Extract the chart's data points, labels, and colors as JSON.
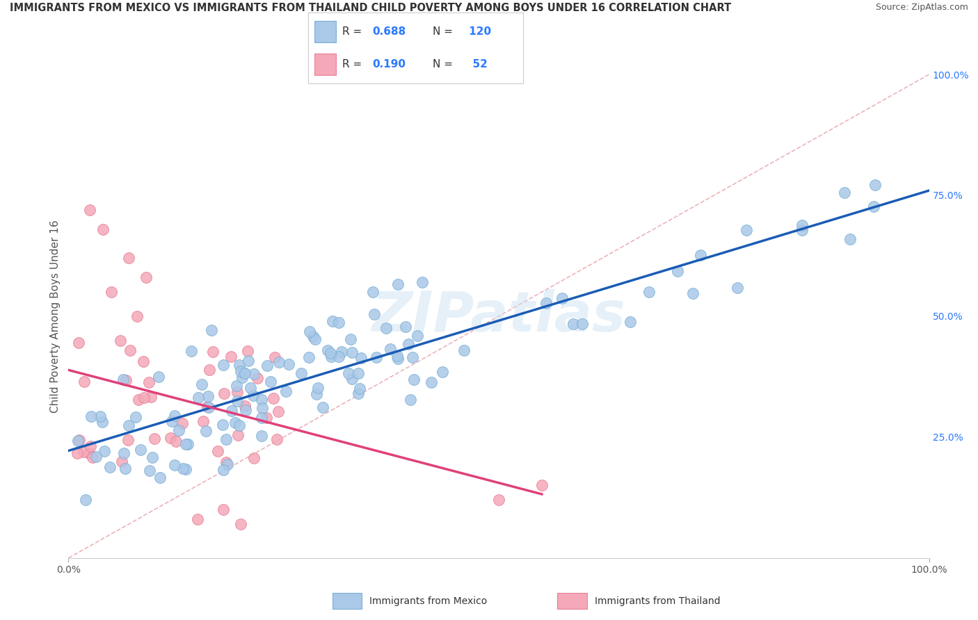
{
  "title": "IMMIGRANTS FROM MEXICO VS IMMIGRANTS FROM THAILAND CHILD POVERTY AMONG BOYS UNDER 16 CORRELATION CHART",
  "source": "Source: ZipAtlas.com",
  "ylabel": "Child Poverty Among Boys Under 16",
  "xlim": [
    0,
    1.0
  ],
  "ylim": [
    0,
    1.0
  ],
  "background_color": "#ffffff",
  "watermark_text": "ZIPatlas",
  "mexico_color": "#aac8e8",
  "mexico_edge": "#7aafd4",
  "thailand_color": "#f4a8b8",
  "thailand_edge": "#e88098",
  "mexico_R": 0.688,
  "mexico_N": 120,
  "thailand_R": 0.19,
  "thailand_N": 52,
  "legend_R_color": "#2979FF",
  "legend_label_mexico": "Immigrants from Mexico",
  "legend_label_thailand": "Immigrants from Thailand",
  "regression_mexico_color": "#1a5cb5",
  "regression_thailand_color": "#e0407a",
  "regression_diagonal_color": "#e8a0a8",
  "title_fontsize": 10.5,
  "source_fontsize": 9,
  "axis_label_fontsize": 11,
  "tick_fontsize": 10,
  "right_tick_color": "#2979FF"
}
